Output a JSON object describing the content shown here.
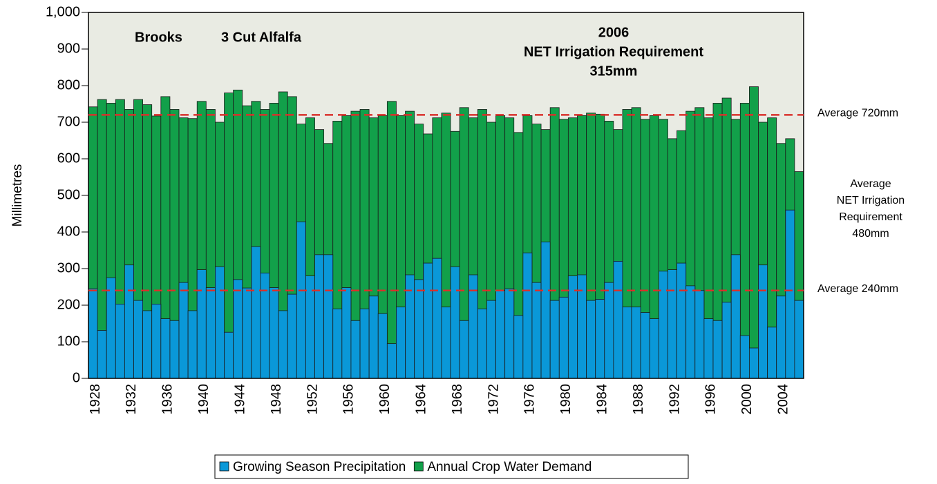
{
  "chart_data": {
    "type": "overlap_bar",
    "y_label": "Millimetres",
    "annotations": [
      "Brooks",
      "3 Cut Alfalfa"
    ],
    "headline": [
      "2006",
      "NET Irrigation Requirement",
      "315mm"
    ],
    "side_note": [
      "Average",
      "NET Irrigation",
      "Requirement",
      "480mm"
    ],
    "reference_lines": [
      {
        "value": 720,
        "label": "Average 720mm",
        "color": "#d9312b"
      },
      {
        "value": 240,
        "label": "Average 240mm",
        "color": "#d9312b"
      }
    ],
    "categories": [
      "1928",
      null,
      null,
      null,
      "1932",
      null,
      null,
      null,
      "1936",
      null,
      null,
      null,
      "1940",
      null,
      null,
      null,
      "1944",
      null,
      null,
      null,
      "1948",
      null,
      null,
      null,
      "1952",
      null,
      null,
      null,
      "1956",
      null,
      null,
      null,
      "1960",
      null,
      null,
      null,
      "1964",
      null,
      null,
      null,
      "1968",
      null,
      null,
      null,
      "1972",
      null,
      null,
      null,
      "1976",
      null,
      null,
      null,
      "1980",
      null,
      null,
      null,
      "1984",
      null,
      null,
      null,
      "1988",
      null,
      null,
      null,
      "1992",
      null,
      null,
      null,
      "1996",
      null,
      null,
      null,
      "2000",
      null,
      null,
      null,
      "2004",
      null,
      null
    ],
    "series": [
      {
        "name": "Growing Season Precipitation",
        "color": "#0a98d8",
        "values": [
          245,
          131,
          275,
          203,
          310,
          213,
          185,
          203,
          163,
          158,
          262,
          185,
          297,
          248,
          305,
          126,
          270,
          247,
          360,
          288,
          248,
          185,
          230,
          428,
          280,
          338,
          338,
          190,
          248,
          158,
          190,
          225,
          177,
          95,
          195,
          283,
          270,
          315,
          328,
          195,
          305,
          158,
          283,
          190,
          213,
          240,
          245,
          172,
          343,
          262,
          373,
          213,
          222,
          280,
          283,
          213,
          216,
          262,
          320,
          195,
          195,
          180,
          163,
          293,
          297,
          315,
          253,
          240,
          163,
          158,
          208,
          338,
          117,
          83,
          310,
          140,
          225,
          460,
          213
        ]
      },
      {
        "name": "Annual Crop Water Demand",
        "color": "#12a04a",
        "values": [
          742,
          762,
          752,
          762,
          735,
          762,
          748,
          717,
          770,
          735,
          712,
          710,
          757,
          735,
          700,
          780,
          788,
          745,
          757,
          735,
          752,
          783,
          770,
          695,
          712,
          680,
          642,
          703,
          718,
          730,
          735,
          712,
          718,
          757,
          718,
          730,
          695,
          668,
          712,
          725,
          675,
          740,
          712,
          735,
          700,
          718,
          712,
          672,
          718,
          695,
          680,
          740,
          708,
          712,
          718,
          725,
          722,
          703,
          680,
          735,
          740,
          708,
          718,
          708,
          655,
          677,
          730,
          740,
          712,
          752,
          766,
          708,
          752,
          797,
          700,
          712,
          642,
          655,
          565
        ]
      }
    ],
    "ylim": [
      0,
      1000
    ],
    "yticks": [
      0,
      100,
      200,
      300,
      400,
      500,
      600,
      700,
      800,
      900,
      {
        "value": 1000,
        "label": "1,000"
      }
    ],
    "plot_background": "#e9ebe3"
  }
}
